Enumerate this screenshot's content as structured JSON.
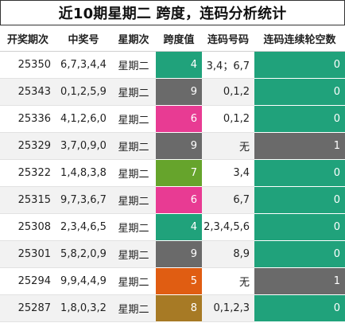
{
  "title": "近10期星期二 跨度，连码分析统计",
  "headers": [
    "开奖期次",
    "中奖号",
    "星期次",
    "跨度值",
    "连码号码",
    "连码连续轮空数"
  ],
  "colors": {
    "green": "#20a27b",
    "gray": "#6a6a6a",
    "pink": "#e83b93",
    "lime": "#66a42c",
    "orange": "#e05d12",
    "olive": "#a77a25"
  },
  "rows": [
    {
      "issue": "25350",
      "numbers": "6,7,3,4,4",
      "weekday": "星期二",
      "span": "4",
      "span_color": "#20a27b",
      "consecutive": "3,4；6,7",
      "gap": "0",
      "gap_color": "#20a27b"
    },
    {
      "issue": "25343",
      "numbers": "0,1,2,5,9",
      "weekday": "星期二",
      "span": "9",
      "span_color": "#6a6a6a",
      "consecutive": "0,1,2",
      "gap": "0",
      "gap_color": "#20a27b"
    },
    {
      "issue": "25336",
      "numbers": "4,1,2,6,0",
      "weekday": "星期二",
      "span": "6",
      "span_color": "#e83b93",
      "consecutive": "0,1,2",
      "gap": "0",
      "gap_color": "#20a27b"
    },
    {
      "issue": "25329",
      "numbers": "3,7,0,9,0",
      "weekday": "星期二",
      "span": "9",
      "span_color": "#6a6a6a",
      "consecutive": "无",
      "gap": "1",
      "gap_color": "#6a6a6a"
    },
    {
      "issue": "25322",
      "numbers": "1,4,8,3,8",
      "weekday": "星期二",
      "span": "7",
      "span_color": "#66a42c",
      "consecutive": "3,4",
      "gap": "0",
      "gap_color": "#20a27b"
    },
    {
      "issue": "25315",
      "numbers": "9,7,3,6,7",
      "weekday": "星期二",
      "span": "6",
      "span_color": "#e83b93",
      "consecutive": "6,7",
      "gap": "0",
      "gap_color": "#20a27b"
    },
    {
      "issue": "25308",
      "numbers": "2,3,4,6,5",
      "weekday": "星期二",
      "span": "4",
      "span_color": "#20a27b",
      "consecutive": "2,3,4,5,6",
      "gap": "0",
      "gap_color": "#20a27b"
    },
    {
      "issue": "25301",
      "numbers": "5,8,2,0,9",
      "weekday": "星期二",
      "span": "9",
      "span_color": "#6a6a6a",
      "consecutive": "8,9",
      "gap": "0",
      "gap_color": "#20a27b"
    },
    {
      "issue": "25294",
      "numbers": "9,9,4,4,9",
      "weekday": "星期二",
      "span": "5",
      "span_color": "#e05d12",
      "consecutive": "无",
      "gap": "1",
      "gap_color": "#6a6a6a"
    },
    {
      "issue": "25287",
      "numbers": "1,8,0,3,2",
      "weekday": "星期二",
      "span": "8",
      "span_color": "#a77a25",
      "consecutive": "0,1,2,3",
      "gap": "0",
      "gap_color": "#20a27b"
    }
  ]
}
